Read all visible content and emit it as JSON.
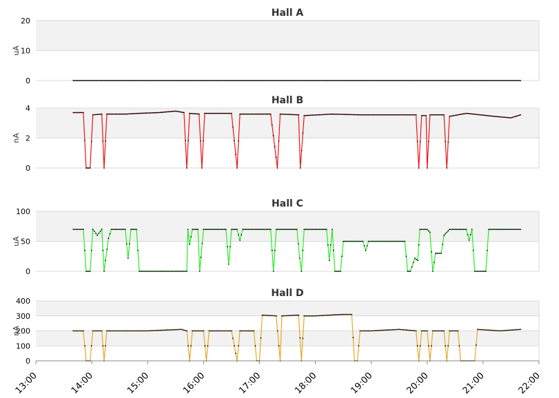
{
  "chart_data": {
    "type": "line",
    "x_ticks": [
      "13:00",
      "14:00",
      "15:00",
      "16:00",
      "17:00",
      "18:00",
      "19:00",
      "20:00",
      "21:00",
      "22:00"
    ],
    "x_range_hours": [
      13,
      22
    ],
    "marker_color": "#000000",
    "band_color": "#f2f2f2",
    "panels": [
      {
        "title": "Hall A",
        "ylabel": "uA",
        "ylim": [
          0,
          20
        ],
        "yticks": [
          "0",
          "10",
          "20"
        ],
        "color": "#444444",
        "series": [
          [
            13.67,
            0
          ],
          [
            14.0,
            0
          ],
          [
            15.0,
            0
          ],
          [
            16.0,
            0
          ],
          [
            17.0,
            0
          ],
          [
            18.0,
            0
          ],
          [
            19.0,
            0
          ],
          [
            20.0,
            0
          ],
          [
            21.0,
            0
          ],
          [
            21.67,
            0
          ]
        ]
      },
      {
        "title": "Hall B",
        "ylabel": "nA",
        "ylim": [
          0,
          4
        ],
        "yticks": [
          "0",
          "2",
          "4"
        ],
        "color": "#ee1111",
        "series": [
          [
            13.67,
            3.7
          ],
          [
            13.85,
            3.7
          ],
          [
            13.9,
            0
          ],
          [
            13.97,
            0
          ],
          [
            14.02,
            3.55
          ],
          [
            14.18,
            3.6
          ],
          [
            14.22,
            0
          ],
          [
            14.27,
            3.6
          ],
          [
            14.6,
            3.6
          ],
          [
            14.85,
            3.65
          ],
          [
            15.2,
            3.7
          ],
          [
            15.5,
            3.8
          ],
          [
            15.65,
            3.7
          ],
          [
            15.7,
            0
          ],
          [
            15.75,
            3.65
          ],
          [
            15.92,
            3.6
          ],
          [
            15.97,
            0
          ],
          [
            16.02,
            3.65
          ],
          [
            16.5,
            3.65
          ],
          [
            16.6,
            0
          ],
          [
            16.65,
            3.6
          ],
          [
            17.2,
            3.6
          ],
          [
            17.32,
            0
          ],
          [
            17.37,
            3.6
          ],
          [
            17.7,
            3.55
          ],
          [
            17.73,
            0
          ],
          [
            17.8,
            3.5
          ],
          [
            18.3,
            3.6
          ],
          [
            18.8,
            3.55
          ],
          [
            19.5,
            3.55
          ],
          [
            19.8,
            3.55
          ],
          [
            19.85,
            0
          ],
          [
            19.9,
            3.5
          ],
          [
            19.98,
            3.5
          ],
          [
            20.0,
            0
          ],
          [
            20.05,
            3.55
          ],
          [
            20.3,
            3.55
          ],
          [
            20.35,
            0
          ],
          [
            20.4,
            3.45
          ],
          [
            20.7,
            3.65
          ],
          [
            21.2,
            3.45
          ],
          [
            21.5,
            3.35
          ],
          [
            21.67,
            3.55
          ]
        ]
      },
      {
        "title": "Hall C",
        "ylabel": "uA",
        "ylim": [
          0,
          100
        ],
        "yticks": [
          "0",
          "50",
          "100"
        ],
        "color": "#22ee22",
        "series": [
          [
            13.67,
            70
          ],
          [
            13.85,
            70
          ],
          [
            13.9,
            0
          ],
          [
            13.97,
            0
          ],
          [
            14.02,
            70
          ],
          [
            14.1,
            60
          ],
          [
            14.18,
            70
          ],
          [
            14.22,
            0
          ],
          [
            14.3,
            55
          ],
          [
            14.35,
            70
          ],
          [
            14.6,
            70
          ],
          [
            14.65,
            22
          ],
          [
            14.7,
            70
          ],
          [
            14.8,
            70
          ],
          [
            14.85,
            0
          ],
          [
            15.7,
            0
          ],
          [
            15.72,
            70
          ],
          [
            15.75,
            45
          ],
          [
            15.8,
            70
          ],
          [
            15.9,
            70
          ],
          [
            15.93,
            0
          ],
          [
            16.0,
            70
          ],
          [
            16.4,
            70
          ],
          [
            16.45,
            12
          ],
          [
            16.5,
            70
          ],
          [
            16.6,
            70
          ],
          [
            16.65,
            52
          ],
          [
            16.7,
            70
          ],
          [
            17.1,
            70
          ],
          [
            17.2,
            70
          ],
          [
            17.25,
            0
          ],
          [
            17.3,
            70
          ],
          [
            17.67,
            70
          ],
          [
            17.72,
            22
          ],
          [
            17.75,
            0
          ],
          [
            17.8,
            70
          ],
          [
            18.2,
            70
          ],
          [
            18.25,
            18
          ],
          [
            18.3,
            70
          ],
          [
            18.35,
            0
          ],
          [
            18.45,
            0
          ],
          [
            18.5,
            50
          ],
          [
            18.85,
            50
          ],
          [
            18.9,
            35
          ],
          [
            18.95,
            50
          ],
          [
            19.6,
            50
          ],
          [
            19.65,
            0
          ],
          [
            19.7,
            0
          ],
          [
            19.78,
            22
          ],
          [
            19.83,
            18
          ],
          [
            19.87,
            70
          ],
          [
            20.0,
            70
          ],
          [
            20.05,
            65
          ],
          [
            20.1,
            0
          ],
          [
            20.15,
            30
          ],
          [
            20.25,
            30
          ],
          [
            20.3,
            60
          ],
          [
            20.4,
            70
          ],
          [
            20.7,
            70
          ],
          [
            20.75,
            52
          ],
          [
            20.8,
            70
          ],
          [
            20.85,
            0
          ],
          [
            21.05,
            0
          ],
          [
            21.1,
            70
          ],
          [
            21.67,
            70
          ]
        ]
      },
      {
        "title": "Hall D",
        "ylabel": "nA",
        "ylim": [
          0,
          400
        ],
        "yticks": [
          "0",
          "100",
          "200",
          "300",
          "400"
        ],
        "color": "#e8a622",
        "series": [
          [
            13.67,
            200
          ],
          [
            13.85,
            200
          ],
          [
            13.9,
            0
          ],
          [
            13.97,
            0
          ],
          [
            14.02,
            200
          ],
          [
            14.18,
            200
          ],
          [
            14.22,
            0
          ],
          [
            14.27,
            200
          ],
          [
            15.0,
            200
          ],
          [
            15.6,
            210
          ],
          [
            15.7,
            200
          ],
          [
            15.75,
            0
          ],
          [
            15.8,
            200
          ],
          [
            16.0,
            200
          ],
          [
            16.05,
            0
          ],
          [
            16.1,
            200
          ],
          [
            16.5,
            200
          ],
          [
            16.6,
            0
          ],
          [
            16.65,
            200
          ],
          [
            16.9,
            200
          ],
          [
            16.95,
            0
          ],
          [
            17.0,
            0
          ],
          [
            17.05,
            305
          ],
          [
            17.3,
            300
          ],
          [
            17.37,
            0
          ],
          [
            17.4,
            300
          ],
          [
            17.7,
            305
          ],
          [
            17.75,
            0
          ],
          [
            17.8,
            300
          ],
          [
            18.0,
            300
          ],
          [
            18.5,
            310
          ],
          [
            18.65,
            310
          ],
          [
            18.7,
            0
          ],
          [
            18.75,
            0
          ],
          [
            18.8,
            200
          ],
          [
            19.0,
            200
          ],
          [
            19.5,
            210
          ],
          [
            19.8,
            200
          ],
          [
            19.85,
            0
          ],
          [
            19.9,
            200
          ],
          [
            20.0,
            200
          ],
          [
            20.05,
            0
          ],
          [
            20.1,
            200
          ],
          [
            20.3,
            200
          ],
          [
            20.35,
            0
          ],
          [
            20.4,
            200
          ],
          [
            20.55,
            200
          ],
          [
            20.6,
            0
          ],
          [
            20.85,
            0
          ],
          [
            20.9,
            210
          ],
          [
            21.3,
            200
          ],
          [
            21.67,
            210
          ]
        ]
      }
    ]
  }
}
